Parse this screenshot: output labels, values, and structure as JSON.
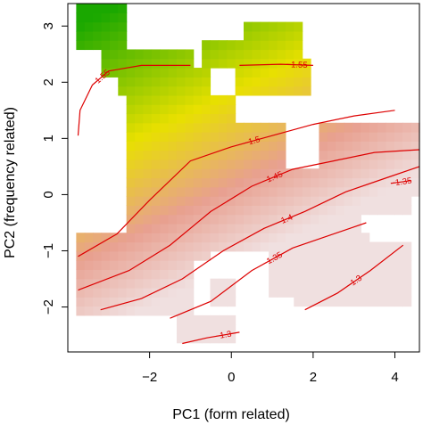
{
  "chart_data": {
    "type": "heatmap",
    "title": "",
    "xlabel": "PC1 (form related)",
    "ylabel": "PC2 (frequency related)",
    "xlim": [
      -4.0,
      4.6
    ],
    "ylim": [
      -2.8,
      3.4
    ],
    "x_ticks": [
      -2,
      0,
      2,
      4
    ],
    "y_ticks": [
      -2,
      -1,
      0,
      1,
      2,
      3
    ],
    "x_tick_labels": [
      "−2",
      "0",
      "2",
      "4"
    ],
    "y_tick_labels": [
      "−2",
      "−1",
      "0",
      "1",
      "2",
      "3"
    ],
    "grid": false,
    "colors": {
      "low": "#f0e0e0",
      "mid_low": "#e8a090",
      "mid": "#e8e000",
      "high": "#1aa800",
      "contour": "#dd0000"
    },
    "contours": [
      {
        "level": -1.55,
        "label": "−1.55",
        "points": [
          [
            -3.75,
            1.05
          ],
          [
            -3.7,
            1.5
          ],
          [
            -3.4,
            1.95
          ],
          [
            -3.0,
            2.2
          ],
          [
            -2.2,
            2.3
          ],
          [
            -1.0,
            2.3
          ]
        ]
      },
      {
        "level": -1.55,
        "label": "−1.55",
        "points": [
          [
            0.2,
            2.3
          ],
          [
            1.2,
            2.32
          ],
          [
            2.0,
            2.3
          ]
        ]
      },
      {
        "level": -1.5,
        "label": "−1.5",
        "points": [
          [
            -3.75,
            -1.1
          ],
          [
            -2.8,
            -0.7
          ],
          [
            -2.0,
            -0.1
          ],
          [
            -1.0,
            0.6
          ],
          [
            0.0,
            0.85
          ],
          [
            1.0,
            1.05
          ],
          [
            2.0,
            1.25
          ],
          [
            3.0,
            1.4
          ],
          [
            4.0,
            1.5
          ]
        ]
      },
      {
        "level": -1.45,
        "label": "−1.45",
        "points": [
          [
            -3.75,
            -1.7
          ],
          [
            -2.5,
            -1.35
          ],
          [
            -1.5,
            -0.9
          ],
          [
            -0.5,
            -0.3
          ],
          [
            0.5,
            0.15
          ],
          [
            1.5,
            0.45
          ],
          [
            2.5,
            0.6
          ],
          [
            3.5,
            0.75
          ],
          [
            4.6,
            0.8
          ]
        ]
      },
      {
        "level": -1.4,
        "label": "−1.4",
        "points": [
          [
            -3.2,
            -2.05
          ],
          [
            -2.2,
            -1.85
          ],
          [
            -1.2,
            -1.5
          ],
          [
            -0.2,
            -1.0
          ],
          [
            0.8,
            -0.6
          ],
          [
            1.8,
            -0.3
          ],
          [
            2.8,
            0.05
          ],
          [
            3.8,
            0.3
          ],
          [
            4.6,
            0.5
          ]
        ]
      },
      {
        "level": -1.35,
        "label": "−1.35",
        "points": [
          [
            -1.5,
            -2.2
          ],
          [
            -0.5,
            -1.9
          ],
          [
            0.5,
            -1.35
          ],
          [
            1.5,
            -0.95
          ],
          [
            2.5,
            -0.7
          ],
          [
            3.3,
            -0.5
          ]
        ]
      },
      {
        "level": -1.35,
        "label": "−1.35",
        "points": [
          [
            3.9,
            0.2
          ],
          [
            4.4,
            0.25
          ]
        ]
      },
      {
        "level": -1.3,
        "label": "−1.3",
        "points": [
          [
            -1.2,
            -2.65
          ],
          [
            -0.6,
            -2.55
          ],
          [
            0.2,
            -2.45
          ]
        ]
      },
      {
        "level": -1.3,
        "label": "−1.3",
        "points": [
          [
            1.8,
            -2.05
          ],
          [
            2.6,
            -1.75
          ],
          [
            3.4,
            -1.35
          ],
          [
            4.2,
            -0.9
          ]
        ]
      }
    ]
  }
}
